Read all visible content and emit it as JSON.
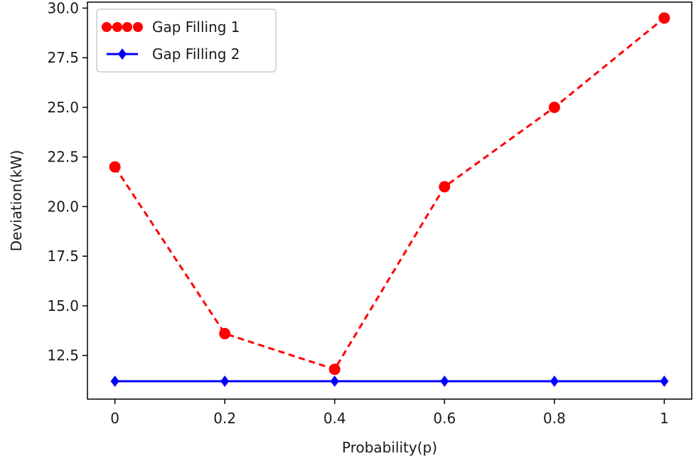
{
  "chart_data": {
    "type": "line",
    "title": "",
    "xlabel": "Probability(p)",
    "ylabel": "Deviation(kW)",
    "x": [
      0,
      0.2,
      0.4,
      0.6,
      0.8,
      1
    ],
    "xticks": [
      "0",
      "0.2",
      "0.4",
      "0.6",
      "0.8",
      "1"
    ],
    "xlim": [
      -0.05,
      1.05
    ],
    "ylim": [
      10.3,
      30.3
    ],
    "yticks": [
      "12.5",
      "15.0",
      "17.5",
      "20.0",
      "22.5",
      "25.0",
      "27.5",
      "30.0"
    ],
    "grid": false,
    "legend_position": "upper-left",
    "series": [
      {
        "name": "Gap Filling 1",
        "values": [
          22.0,
          13.6,
          11.8,
          21.0,
          25.0,
          29.5
        ],
        "color": "#ff0000",
        "line_style": "dashed",
        "marker": "circle"
      },
      {
        "name": "Gap Filling 2",
        "values": [
          11.2,
          11.2,
          11.2,
          11.2,
          11.2,
          11.2
        ],
        "color": "#0000ff",
        "line_style": "solid",
        "marker": "diamond"
      }
    ]
  }
}
